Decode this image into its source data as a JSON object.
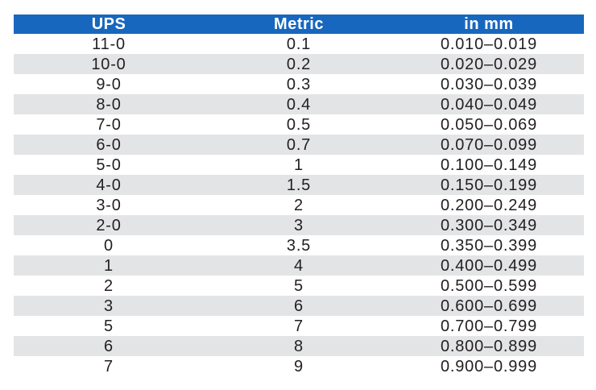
{
  "colors": {
    "header_bg": "#1767BE",
    "header_text": "#FFFFFF",
    "row_bg": "#FFFFFF",
    "row_alt_bg": "#E3E4E6",
    "row_text": "#231F20"
  },
  "table": {
    "columns": [
      "UPS",
      "Metric",
      "in mm"
    ],
    "rows": [
      [
        "11-0",
        "0.1",
        "0.010–0.019"
      ],
      [
        "10-0",
        "0.2",
        "0.020–0.029"
      ],
      [
        "9-0",
        "0.3",
        "0.030–0.039"
      ],
      [
        "8-0",
        "0.4",
        "0.040–0.049"
      ],
      [
        "7-0",
        "0.5",
        "0.050–0.069"
      ],
      [
        "6-0",
        "0.7",
        "0.070–0.099"
      ],
      [
        "5-0",
        "1",
        "0.100–0.149"
      ],
      [
        "4-0",
        "1.5",
        "0.150–0.199"
      ],
      [
        "3-0",
        "2",
        "0.200–0.249"
      ],
      [
        "2-0",
        "3",
        "0.300–0.349"
      ],
      [
        "0",
        "3.5",
        "0.350–0.399"
      ],
      [
        "1",
        "4",
        "0.400–0.499"
      ],
      [
        "2",
        "5",
        "0.500–0.599"
      ],
      [
        "3",
        "6",
        "0.600–0.699"
      ],
      [
        "5",
        "7",
        "0.700–0.799"
      ],
      [
        "6",
        "8",
        "0.800–0.899"
      ],
      [
        "7",
        "9",
        "0.900–0.999"
      ]
    ]
  }
}
